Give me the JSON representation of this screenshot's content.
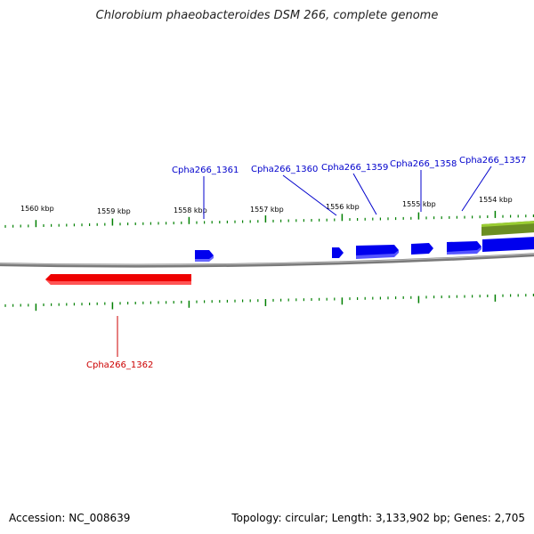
{
  "title": "Chlorobium phaeobacteroides DSM 266, complete genome",
  "footer": {
    "accession": "Accession: NC_008639",
    "summary": "Topology: circular; Length: 3,133,902 bp; Genes: 2,705"
  },
  "colors": {
    "forward_gene": "#0000ee",
    "reverse_gene": "#ee0000",
    "other_feature": "#6b8e23",
    "backbone": "#888888",
    "tick": "#008000",
    "label_forward": "#0000cc",
    "label_reverse": "#cc0000"
  },
  "kbp_labels": [
    "1560 kbp",
    "1559 kbp",
    "1558 kbp",
    "1557 kbp",
    "1556 kbp",
    "1555 kbp",
    "1554 kbp"
  ],
  "genes": [
    {
      "name": "Cpha266_1361",
      "strand": "forward"
    },
    {
      "name": "Cpha266_1360",
      "strand": "forward"
    },
    {
      "name": "Cpha266_1359",
      "strand": "forward"
    },
    {
      "name": "Cpha266_1358",
      "strand": "forward"
    },
    {
      "name": "Cpha266_1357",
      "strand": "forward"
    },
    {
      "name": "Cpha266_1362",
      "strand": "reverse"
    }
  ]
}
